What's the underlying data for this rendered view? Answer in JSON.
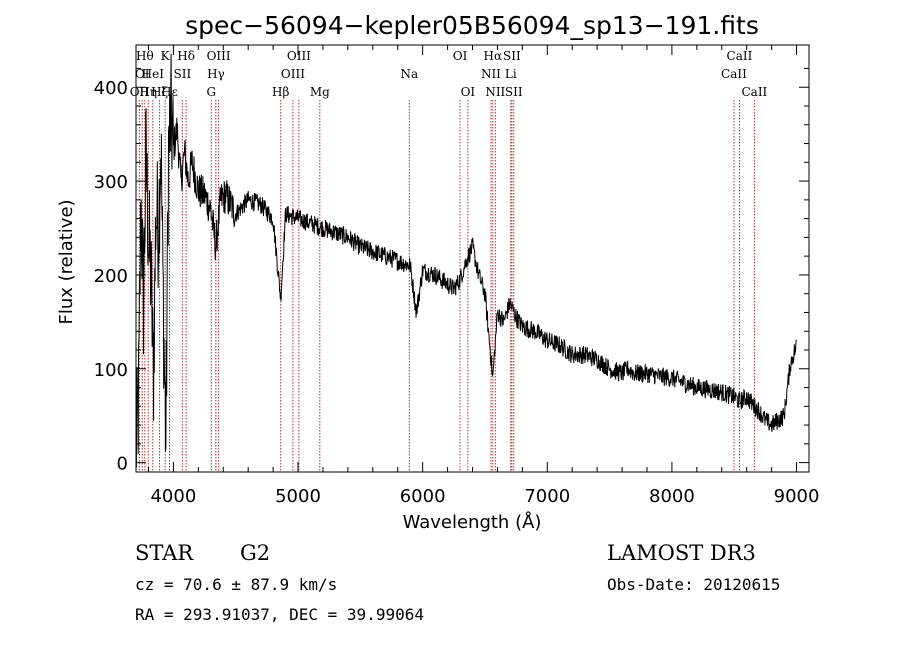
{
  "chart_data": {
    "type": "line",
    "title": "spec−56094−kepler05B56094_sp13−191.fits",
    "xlabel": "Wavelength (Å)",
    "ylabel": "Flux (relative)",
    "xlim": [
      3700,
      9100
    ],
    "ylim": [
      -10,
      445
    ],
    "x_ticks": [
      4000,
      5000,
      6000,
      7000,
      8000,
      9000
    ],
    "y_ticks": [
      0,
      100,
      200,
      300,
      400
    ],
    "series": [
      {
        "name": "flux",
        "x": [
          3700,
          3720,
          3740,
          3760,
          3780,
          3800,
          3820,
          3840,
          3860,
          3880,
          3900,
          3920,
          3940,
          3960,
          3980,
          4000,
          4030,
          4060,
          4090,
          4120,
          4150,
          4200,
          4250,
          4300,
          4340,
          4380,
          4420,
          4500,
          4600,
          4700,
          4800,
          4861,
          4900,
          5000,
          5100,
          5200,
          5300,
          5400,
          5500,
          5600,
          5700,
          5800,
          5900,
          5950,
          6000,
          6100,
          6200,
          6250,
          6300,
          6350,
          6400,
          6450,
          6500,
          6563,
          6600,
          6650,
          6700,
          6750,
          6800,
          6900,
          7000,
          7100,
          7200,
          7300,
          7400,
          7500,
          7600,
          7650,
          7700,
          7800,
          7900,
          8000,
          8100,
          8200,
          8300,
          8400,
          8500,
          8542,
          8600,
          8662,
          8700,
          8750,
          8800,
          8850,
          8900,
          8950,
          9000
        ],
        "values": [
          10,
          60,
          280,
          170,
          330,
          240,
          200,
          90,
          270,
          250,
          345,
          160,
          20,
          330,
          370,
          335,
          355,
          300,
          330,
          300,
          320,
          290,
          285,
          270,
          230,
          280,
          285,
          265,
          280,
          275,
          260,
          175,
          265,
          260,
          255,
          250,
          245,
          240,
          230,
          225,
          220,
          215,
          210,
          160,
          205,
          200,
          190,
          185,
          195,
          215,
          230,
          200,
          180,
          90,
          160,
          150,
          170,
          155,
          145,
          140,
          130,
          125,
          115,
          115,
          110,
          100,
          95,
          100,
          95,
          95,
          92,
          90,
          85,
          80,
          78,
          75,
          70,
          65,
          70,
          60,
          55,
          45,
          40,
          45,
          50,
          105,
          125
        ]
      }
    ],
    "spectral_lines": [
      {
        "wavelength": 3727,
        "label": "OII",
        "row": 3
      },
      {
        "wavelength": 3750,
        "label": "OI",
        "row": 2
      },
      {
        "wavelength": 3771,
        "label": "Hθ",
        "row": 1
      },
      {
        "wavelength": 3798,
        "label": "Hη",
        "row": 3
      },
      {
        "wavelength": 3835,
        "label": "HeI",
        "row": 2
      },
      {
        "wavelength": 3889,
        "label": "Hζ",
        "row": 3
      },
      {
        "wavelength": 3934,
        "label": "K",
        "row": 1
      },
      {
        "wavelength": 3969,
        "label": "Hε",
        "row": 3
      },
      {
        "wavelength": 4072,
        "label": "SII",
        "row": 2
      },
      {
        "wavelength": 4102,
        "label": "Hδ",
        "row": 1
      },
      {
        "wavelength": 4304,
        "label": "G",
        "row": 3
      },
      {
        "wavelength": 4341,
        "label": "Hγ",
        "row": 2
      },
      {
        "wavelength": 4363,
        "label": "OIII",
        "row": 1
      },
      {
        "wavelength": 4861,
        "label": "Hβ",
        "row": 3
      },
      {
        "wavelength": 4959,
        "label": "OIII",
        "row": 2
      },
      {
        "wavelength": 5007,
        "label": "OIII",
        "row": 1
      },
      {
        "wavelength": 5175,
        "label": "Mg",
        "row": 3
      },
      {
        "wavelength": 5893,
        "label": "Na",
        "row": 2
      },
      {
        "wavelength": 6300,
        "label": "OI",
        "row": 1
      },
      {
        "wavelength": 6363,
        "label": "OI",
        "row": 3
      },
      {
        "wavelength": 6548,
        "label": "NII",
        "row": 2
      },
      {
        "wavelength": 6563,
        "label": "Hα",
        "row": 1
      },
      {
        "wavelength": 6583,
        "label": "NII",
        "row": 3
      },
      {
        "wavelength": 6707,
        "label": "Li",
        "row": 2
      },
      {
        "wavelength": 6716,
        "label": "SII",
        "row": 1
      },
      {
        "wavelength": 6731,
        "label": "SII",
        "row": 3
      },
      {
        "wavelength": 8498,
        "label": "CaII",
        "row": 2
      },
      {
        "wavelength": 8542,
        "label": "CaII",
        "row": 1
      },
      {
        "wavelength": 8662,
        "label": "CaII",
        "row": 3
      }
    ]
  },
  "info": {
    "object_class": "STAR",
    "subclass": "G2",
    "survey": "LAMOST DR3",
    "redshift": "cz = 70.6 ± 87.9 km/s",
    "obs_date": "Obs-Date: 20120615",
    "coords": "RA = 293.91037, DEC =  39.99064"
  },
  "colors": {
    "line_marker": "#b03030",
    "spectrum": "#000000"
  }
}
